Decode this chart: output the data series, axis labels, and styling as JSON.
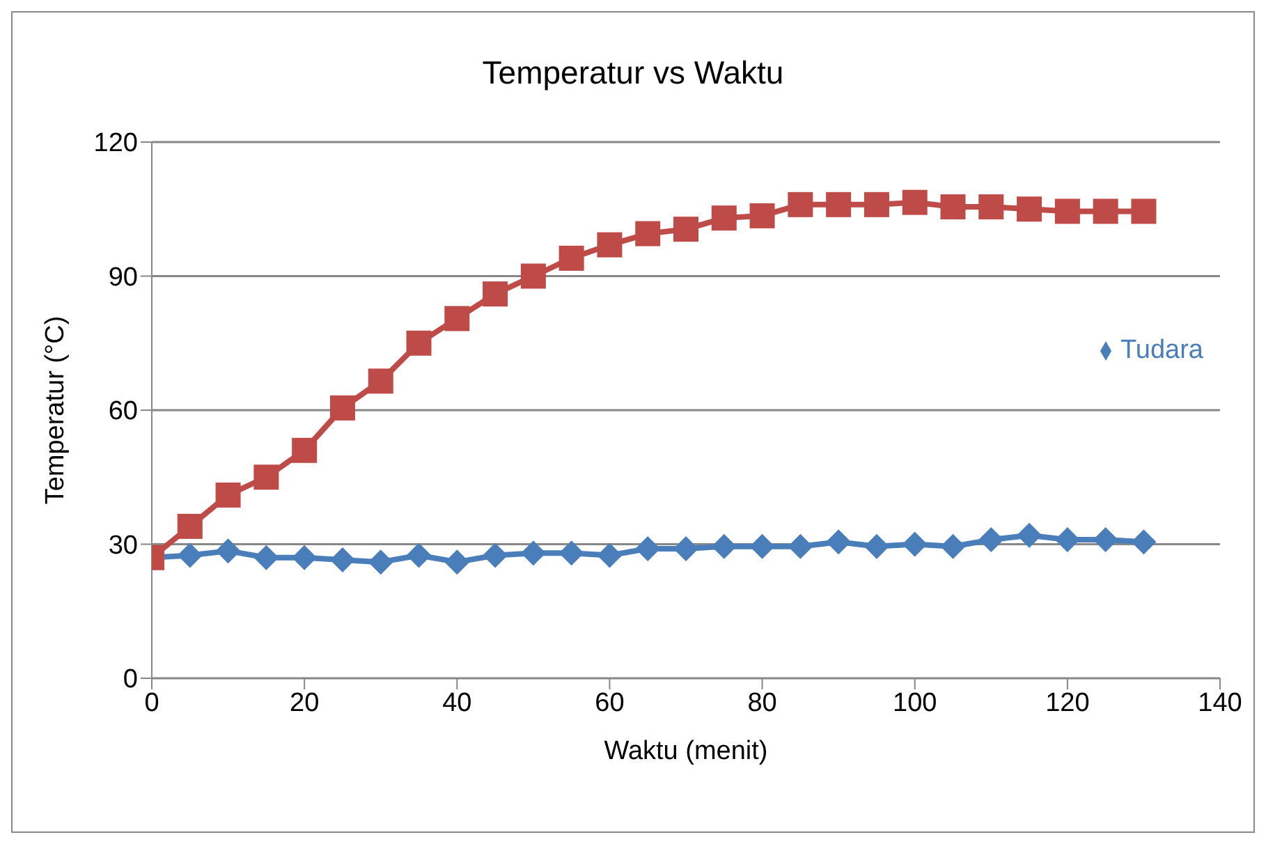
{
  "chart_data": {
    "type": "line",
    "title": "Temperatur vs Waktu",
    "xlabel": "Waktu (menit)",
    "ylabel": "Temperatur (°C)",
    "x": [
      0,
      5,
      10,
      15,
      20,
      25,
      30,
      35,
      40,
      45,
      50,
      55,
      60,
      65,
      70,
      75,
      80,
      85,
      90,
      95,
      100,
      105,
      110,
      115,
      120,
      125,
      130
    ],
    "series": [
      {
        "name": "Tudara",
        "color": "#4a7ebb",
        "marker": "diamond",
        "values": [
          27,
          27.5,
          28.5,
          27,
          27,
          26.5,
          26,
          27.5,
          26,
          27.5,
          28,
          28,
          27.5,
          29,
          29,
          29.5,
          29.5,
          29.5,
          30.5,
          29.5,
          30,
          29.5,
          31,
          32,
          31,
          31,
          30.5
        ]
      },
      {
        "color": "#be4b48",
        "marker": "square",
        "values": [
          27,
          34,
          41,
          45,
          51,
          60.5,
          66.5,
          75,
          80.5,
          86,
          90,
          94,
          97,
          99.5,
          100.5,
          103,
          103.5,
          106,
          106,
          106,
          106.5,
          105.5,
          105.5,
          105,
          104.5,
          104.5,
          104.5
        ]
      }
    ],
    "xlim": [
      0,
      140
    ],
    "xticks": [
      0,
      20,
      40,
      60,
      80,
      100,
      120,
      140
    ],
    "ylim": [
      0,
      120
    ],
    "yticks": [
      0,
      30,
      60,
      90,
      120
    ],
    "grid": "y",
    "legend": "right"
  }
}
